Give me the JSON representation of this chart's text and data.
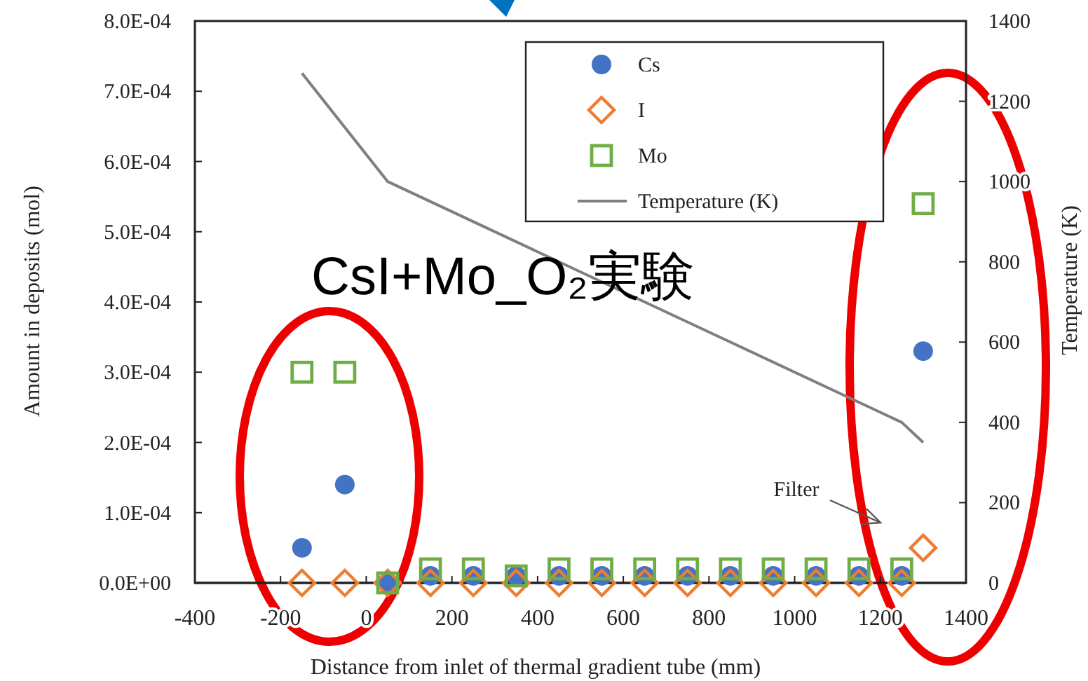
{
  "chart_data": {
    "type": "scatter",
    "xlabel": "Distance from inlet of thermal gradient tube (mm)",
    "ylabel": "Amount in deposits (mol)",
    "y2label": "Temperature (K)",
    "x": [
      -150,
      -50,
      50,
      150,
      250,
      350,
      450,
      550,
      650,
      750,
      850,
      950,
      1050,
      1150,
      1250,
      1300
    ],
    "series": [
      {
        "name": "Cs",
        "color": "#4472c4",
        "marker": "circle",
        "values": [
          5e-05,
          0.00014,
          0,
          1e-05,
          1e-05,
          1e-05,
          1e-05,
          1e-05,
          1e-05,
          1e-05,
          1e-05,
          1e-05,
          1e-05,
          1e-05,
          1e-05,
          0.00033
        ]
      },
      {
        "name": "I",
        "color": "#ed7d31",
        "marker": "diamond",
        "values": [
          0,
          0,
          0,
          0,
          0,
          0,
          0,
          0,
          0,
          0,
          0,
          0,
          0,
          0,
          0,
          5e-05
        ]
      },
      {
        "name": "Mo",
        "color": "#70ad47",
        "marker": "square",
        "values": [
          0.0003,
          0.0003,
          0,
          2e-05,
          2e-05,
          1e-05,
          2e-05,
          2e-05,
          2e-05,
          2e-05,
          2e-05,
          2e-05,
          2e-05,
          2e-05,
          2e-05,
          0.00054
        ]
      },
      {
        "name": "Temperature (K)",
        "type": "line",
        "axis": "y2",
        "color": "#7f7f7f",
        "marker": "none",
        "x": [
          -150,
          50,
          1250,
          1300
        ],
        "values": [
          1270,
          1000,
          400,
          350
        ]
      }
    ],
    "xlim": [
      -400,
      1400
    ],
    "xticks": [
      -400,
      -200,
      0,
      200,
      400,
      600,
      800,
      1000,
      1200,
      1400
    ],
    "ylim": [
      0,
      0.0008
    ],
    "yticks": [
      {
        "value": 0,
        "label": "0.0E+00"
      },
      {
        "value": 0.0001,
        "label": "1.0E-04"
      },
      {
        "value": 0.0002,
        "label": "2.0E-04"
      },
      {
        "value": 0.0003,
        "label": "3.0E-04"
      },
      {
        "value": 0.0004,
        "label": "4.0E-04"
      },
      {
        "value": 0.0005,
        "label": "5.0E-04"
      },
      {
        "value": 0.0006,
        "label": "6.0E-04"
      },
      {
        "value": 0.0007,
        "label": "7.0E-04"
      },
      {
        "value": 0.0008,
        "label": "8.0E-04"
      }
    ],
    "y2lim": [
      0,
      1400
    ],
    "y2ticks": [
      0,
      200,
      400,
      600,
      800,
      1000,
      1200,
      1400
    ],
    "legend": "top right",
    "grid": false,
    "annotations": [
      "CsI+Mo_O₂実験",
      "Filter"
    ]
  }
}
